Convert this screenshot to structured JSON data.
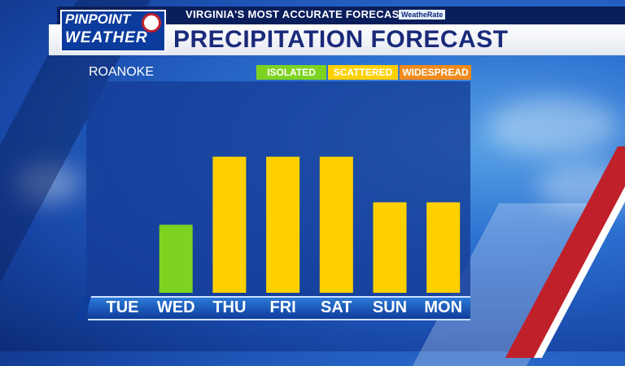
{
  "header": {
    "tagline": "VIRGINIA'S MOST ACCURATE FORECAST",
    "rate_badge": "WeatheRate",
    "title": "PRECIPITATION FORECAST"
  },
  "logo": {
    "line1": "PINPOINT",
    "line2": "WEATHER"
  },
  "location": "ROANOKE",
  "legend": [
    {
      "label": "ISOLATED",
      "color": "#7ed321"
    },
    {
      "label": "SCATTERED",
      "color": "#ffd000"
    },
    {
      "label": "WIDESPREAD",
      "color": "#f08a1c"
    }
  ],
  "chart_data": {
    "type": "bar",
    "categories": [
      "TUE",
      "WED",
      "THU",
      "FRI",
      "SAT",
      "SUN",
      "MON"
    ],
    "values": [
      0,
      1,
      2,
      2,
      2,
      1.33,
      1.33
    ],
    "bar_colors": [
      "#ffd000",
      "#7ed321",
      "#ffd000",
      "#ffd000",
      "#ffd000",
      "#ffd000",
      "#ffd000"
    ],
    "ylim": [
      0,
      3
    ]
  }
}
